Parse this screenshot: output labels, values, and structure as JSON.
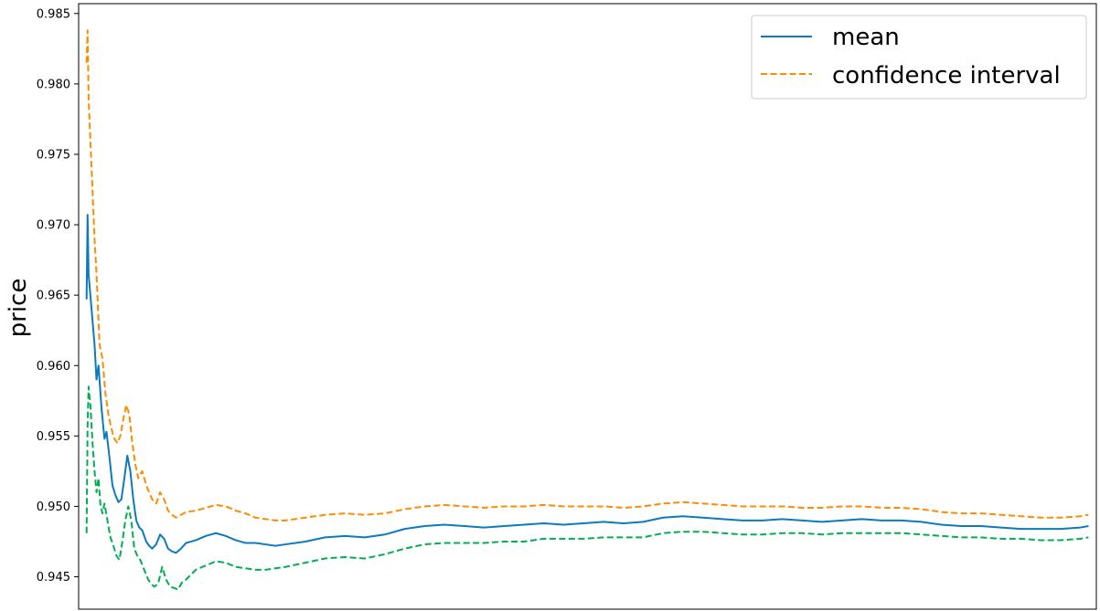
{
  "chart_data": {
    "type": "line",
    "title": "",
    "xlabel": "",
    "ylabel": "price",
    "ylim": [
      0.9427,
      0.9857
    ],
    "xlim": [
      -8,
      1016
    ],
    "yticks": [
      0.945,
      0.95,
      0.955,
      0.96,
      0.965,
      0.97,
      0.975,
      0.98,
      0.985
    ],
    "ytick_labels": [
      "0.945",
      "0.950",
      "0.955",
      "0.960",
      "0.965",
      "0.970",
      "0.975",
      "0.980",
      "0.985"
    ],
    "x_ticks_shown": false,
    "grid": false,
    "legend": {
      "position": "top-right",
      "entries": [
        {
          "label": "mean",
          "color": "#0b7bbd",
          "style": "solid"
        },
        {
          "label": "confidence interval",
          "color": "#ff8c00",
          "style": "dashed"
        }
      ]
    },
    "series": [
      {
        "name": "mean",
        "color": "#0b7bbd",
        "style": "solid",
        "points": [
          [
            0,
            0.9647
          ],
          [
            1,
            0.9707
          ],
          [
            2,
            0.9665
          ],
          [
            5,
            0.964
          ],
          [
            8,
            0.9615
          ],
          [
            10,
            0.959
          ],
          [
            12,
            0.96
          ],
          [
            15,
            0.957
          ],
          [
            18,
            0.9548
          ],
          [
            20,
            0.9553
          ],
          [
            23,
            0.9535
          ],
          [
            26,
            0.9515
          ],
          [
            29,
            0.9508
          ],
          [
            32,
            0.9503
          ],
          [
            35,
            0.9505
          ],
          [
            38,
            0.952
          ],
          [
            41,
            0.9536
          ],
          [
            44,
            0.9525
          ],
          [
            47,
            0.9505
          ],
          [
            50,
            0.949
          ],
          [
            53,
            0.9485
          ],
          [
            56,
            0.9483
          ],
          [
            60,
            0.9475
          ],
          [
            63,
            0.9472
          ],
          [
            66,
            0.947
          ],
          [
            70,
            0.9473
          ],
          [
            74,
            0.948
          ],
          [
            78,
            0.9477
          ],
          [
            82,
            0.947
          ],
          [
            86,
            0.9468
          ],
          [
            90,
            0.9467
          ],
          [
            95,
            0.947
          ],
          [
            100,
            0.9474
          ],
          [
            110,
            0.9476
          ],
          [
            120,
            0.9479
          ],
          [
            130,
            0.9481
          ],
          [
            140,
            0.9479
          ],
          [
            150,
            0.9476
          ],
          [
            160,
            0.9474
          ],
          [
            170,
            0.9474
          ],
          [
            180,
            0.9473
          ],
          [
            190,
            0.9472
          ],
          [
            200,
            0.9473
          ],
          [
            220,
            0.9475
          ],
          [
            240,
            0.9478
          ],
          [
            260,
            0.9479
          ],
          [
            280,
            0.9478
          ],
          [
            300,
            0.948
          ],
          [
            320,
            0.9484
          ],
          [
            340,
            0.9486
          ],
          [
            360,
            0.9487
          ],
          [
            380,
            0.9486
          ],
          [
            400,
            0.9485
          ],
          [
            420,
            0.9486
          ],
          [
            440,
            0.9487
          ],
          [
            460,
            0.9488
          ],
          [
            480,
            0.9487
          ],
          [
            500,
            0.9488
          ],
          [
            520,
            0.9489
          ],
          [
            540,
            0.9488
          ],
          [
            560,
            0.9489
          ],
          [
            580,
            0.9492
          ],
          [
            600,
            0.9493
          ],
          [
            620,
            0.9492
          ],
          [
            640,
            0.9491
          ],
          [
            660,
            0.949
          ],
          [
            680,
            0.949
          ],
          [
            700,
            0.9491
          ],
          [
            720,
            0.949
          ],
          [
            740,
            0.9489
          ],
          [
            760,
            0.949
          ],
          [
            780,
            0.9491
          ],
          [
            800,
            0.949
          ],
          [
            820,
            0.949
          ],
          [
            840,
            0.9489
          ],
          [
            860,
            0.9487
          ],
          [
            880,
            0.9486
          ],
          [
            900,
            0.9486
          ],
          [
            920,
            0.9485
          ],
          [
            940,
            0.9484
          ],
          [
            960,
            0.9484
          ],
          [
            980,
            0.9484
          ],
          [
            1000,
            0.9485
          ],
          [
            1008,
            0.9486
          ]
        ]
      },
      {
        "name": "confidence interval",
        "color": "#ff8c00",
        "style": "dashed",
        "points": [
          [
            0,
            0.9815
          ],
          [
            1,
            0.9838
          ],
          [
            2,
            0.979
          ],
          [
            5,
            0.974
          ],
          [
            8,
            0.969
          ],
          [
            10,
            0.9665
          ],
          [
            13,
            0.9615
          ],
          [
            16,
            0.9605
          ],
          [
            19,
            0.958
          ],
          [
            22,
            0.9565
          ],
          [
            25,
            0.9555
          ],
          [
            28,
            0.9548
          ],
          [
            31,
            0.9545
          ],
          [
            34,
            0.955
          ],
          [
            37,
            0.9562
          ],
          [
            40,
            0.9572
          ],
          [
            43,
            0.9565
          ],
          [
            46,
            0.9545
          ],
          [
            49,
            0.953
          ],
          [
            52,
            0.952
          ],
          [
            56,
            0.9525
          ],
          [
            60,
            0.9515
          ],
          [
            63,
            0.951
          ],
          [
            66,
            0.9505
          ],
          [
            70,
            0.9502
          ],
          [
            74,
            0.951
          ],
          [
            78,
            0.9505
          ],
          [
            82,
            0.9497
          ],
          [
            86,
            0.9494
          ],
          [
            90,
            0.9492
          ],
          [
            95,
            0.9494
          ],
          [
            100,
            0.9496
          ],
          [
            110,
            0.9497
          ],
          [
            120,
            0.9499
          ],
          [
            130,
            0.9501
          ],
          [
            140,
            0.95
          ],
          [
            150,
            0.9497
          ],
          [
            160,
            0.9495
          ],
          [
            170,
            0.9492
          ],
          [
            180,
            0.9491
          ],
          [
            190,
            0.949
          ],
          [
            200,
            0.949
          ],
          [
            220,
            0.9492
          ],
          [
            240,
            0.9494
          ],
          [
            260,
            0.9495
          ],
          [
            280,
            0.9494
          ],
          [
            300,
            0.9495
          ],
          [
            320,
            0.9498
          ],
          [
            340,
            0.95
          ],
          [
            360,
            0.9501
          ],
          [
            380,
            0.95
          ],
          [
            400,
            0.9499
          ],
          [
            420,
            0.95
          ],
          [
            440,
            0.95
          ],
          [
            460,
            0.9501
          ],
          [
            480,
            0.95
          ],
          [
            500,
            0.95
          ],
          [
            520,
            0.95
          ],
          [
            540,
            0.9499
          ],
          [
            560,
            0.95
          ],
          [
            580,
            0.9502
          ],
          [
            600,
            0.9503
          ],
          [
            620,
            0.9502
          ],
          [
            640,
            0.9501
          ],
          [
            660,
            0.95
          ],
          [
            680,
            0.95
          ],
          [
            700,
            0.95
          ],
          [
            720,
            0.9499
          ],
          [
            740,
            0.9499
          ],
          [
            760,
            0.95
          ],
          [
            780,
            0.95
          ],
          [
            800,
            0.9499
          ],
          [
            820,
            0.9499
          ],
          [
            840,
            0.9498
          ],
          [
            860,
            0.9496
          ],
          [
            880,
            0.9495
          ],
          [
            900,
            0.9495
          ],
          [
            920,
            0.9494
          ],
          [
            940,
            0.9493
          ],
          [
            960,
            0.9492
          ],
          [
            980,
            0.9492
          ],
          [
            1000,
            0.9493
          ],
          [
            1008,
            0.9494
          ]
        ]
      },
      {
        "color": "#00b050",
        "style": "dashed",
        "points": [
          [
            0,
            0.9481
          ],
          [
            1,
            0.9557
          ],
          [
            2,
            0.9585
          ],
          [
            4,
            0.957
          ],
          [
            6,
            0.9545
          ],
          [
            8,
            0.9525
          ],
          [
            10,
            0.951
          ],
          [
            12,
            0.952
          ],
          [
            14,
            0.95
          ],
          [
            16,
            0.9495
          ],
          [
            18,
            0.9502
          ],
          [
            21,
            0.949
          ],
          [
            24,
            0.9478
          ],
          [
            27,
            0.9472
          ],
          [
            30,
            0.9465
          ],
          [
            33,
            0.9462
          ],
          [
            36,
            0.9475
          ],
          [
            39,
            0.949
          ],
          [
            42,
            0.95
          ],
          [
            45,
            0.949
          ],
          [
            48,
            0.947
          ],
          [
            51,
            0.9465
          ],
          [
            54,
            0.9462
          ],
          [
            58,
            0.9455
          ],
          [
            62,
            0.9448
          ],
          [
            65,
            0.9445
          ],
          [
            68,
            0.9443
          ],
          [
            72,
            0.9445
          ],
          [
            76,
            0.9457
          ],
          [
            80,
            0.9448
          ],
          [
            84,
            0.9443
          ],
          [
            88,
            0.9442
          ],
          [
            92,
            0.9441
          ],
          [
            96,
            0.9446
          ],
          [
            100,
            0.9448
          ],
          [
            110,
            0.9455
          ],
          [
            120,
            0.9458
          ],
          [
            130,
            0.9461
          ],
          [
            140,
            0.946
          ],
          [
            150,
            0.9457
          ],
          [
            160,
            0.9456
          ],
          [
            170,
            0.9455
          ],
          [
            180,
            0.9455
          ],
          [
            190,
            0.9456
          ],
          [
            200,
            0.9457
          ],
          [
            220,
            0.946
          ],
          [
            240,
            0.9463
          ],
          [
            260,
            0.9464
          ],
          [
            280,
            0.9463
          ],
          [
            300,
            0.9466
          ],
          [
            320,
            0.947
          ],
          [
            340,
            0.9473
          ],
          [
            360,
            0.9474
          ],
          [
            380,
            0.9474
          ],
          [
            400,
            0.9474
          ],
          [
            420,
            0.9475
          ],
          [
            440,
            0.9475
          ],
          [
            460,
            0.9477
          ],
          [
            480,
            0.9477
          ],
          [
            500,
            0.9477
          ],
          [
            520,
            0.9478
          ],
          [
            540,
            0.9478
          ],
          [
            560,
            0.9478
          ],
          [
            580,
            0.9481
          ],
          [
            600,
            0.9482
          ],
          [
            620,
            0.9482
          ],
          [
            640,
            0.9481
          ],
          [
            660,
            0.948
          ],
          [
            680,
            0.948
          ],
          [
            700,
            0.9481
          ],
          [
            720,
            0.9481
          ],
          [
            740,
            0.948
          ],
          [
            760,
            0.9481
          ],
          [
            780,
            0.9481
          ],
          [
            800,
            0.9481
          ],
          [
            820,
            0.9481
          ],
          [
            840,
            0.948
          ],
          [
            860,
            0.9479
          ],
          [
            880,
            0.9478
          ],
          [
            900,
            0.9478
          ],
          [
            920,
            0.9477
          ],
          [
            940,
            0.9477
          ],
          [
            960,
            0.9476
          ],
          [
            980,
            0.9476
          ],
          [
            1000,
            0.9477
          ],
          [
            1008,
            0.9478
          ]
        ]
      }
    ]
  }
}
